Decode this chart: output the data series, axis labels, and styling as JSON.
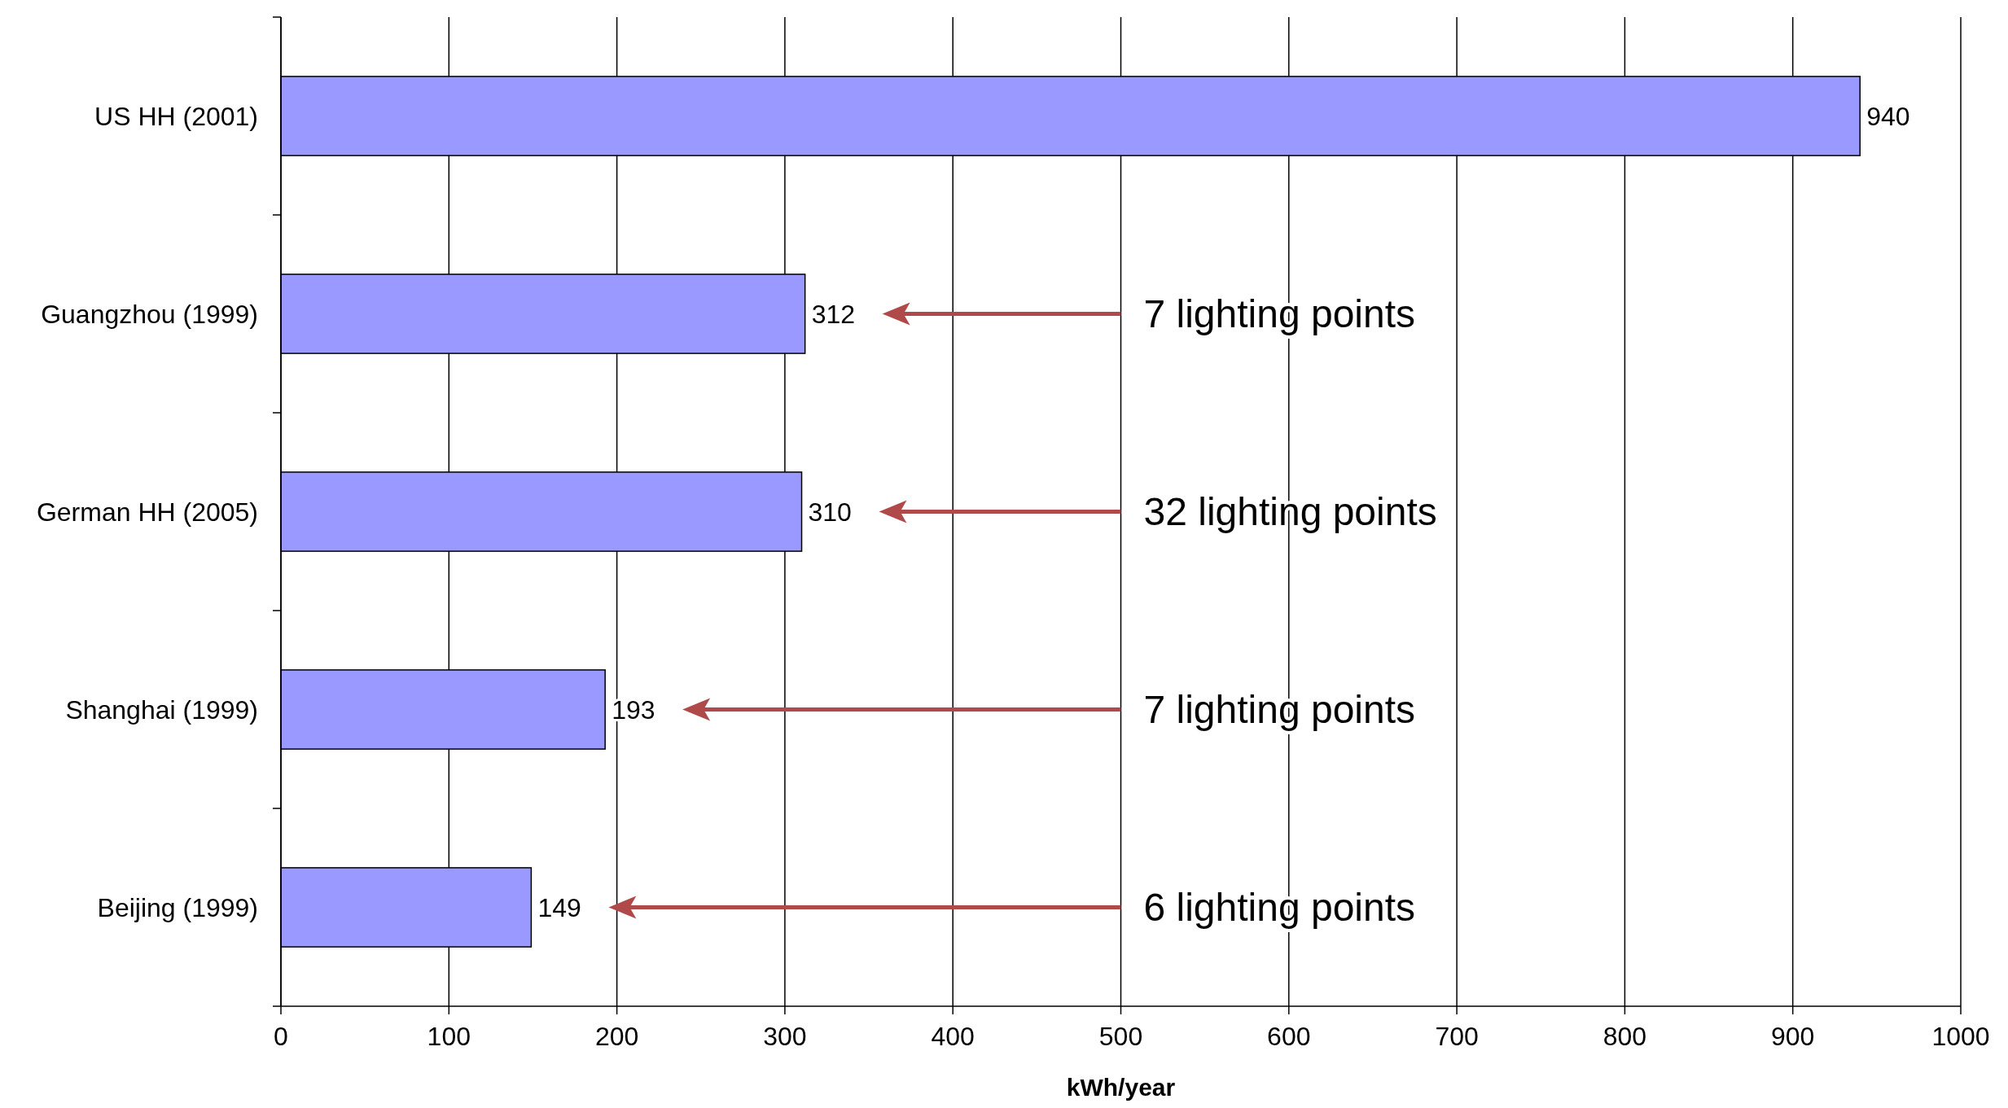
{
  "chart_data": {
    "type": "bar",
    "orientation": "horizontal",
    "categories": [
      "US HH (2001)",
      "Guangzhou (1999)",
      "German HH (2005)",
      "Shanghai (1999)",
      "Beijing (1999)"
    ],
    "values": [
      940,
      312,
      310,
      193,
      149
    ],
    "color": "#9999ff",
    "data_labels": true,
    "xlim": [
      0,
      1000
    ],
    "xticks": [
      0,
      100,
      200,
      300,
      400,
      500,
      600,
      700,
      800,
      900,
      1000
    ],
    "grid": "x",
    "xlabel": "kWh/year",
    "annotations": [
      "7 lighting points",
      "32 lighting points",
      "7 lighting points",
      "6 lighting points"
    ]
  }
}
